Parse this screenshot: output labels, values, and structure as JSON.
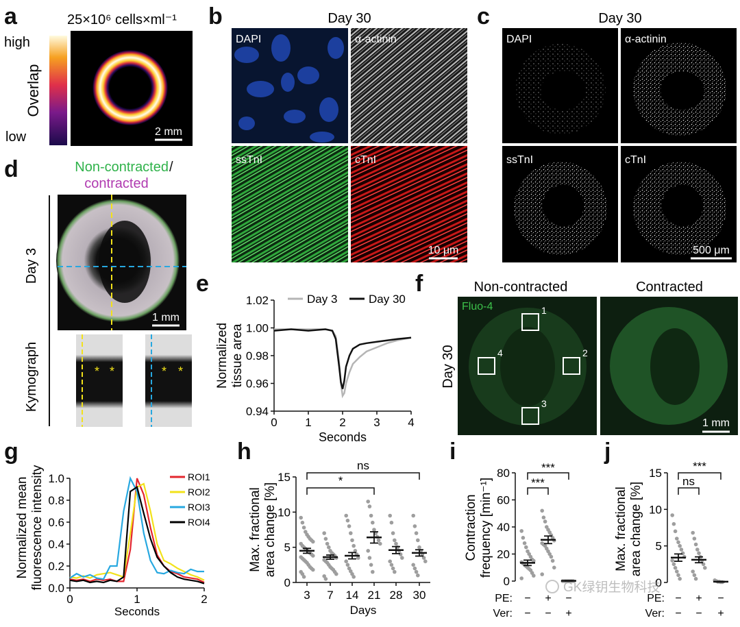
{
  "panel_letters": [
    "a",
    "b",
    "c",
    "d",
    "e",
    "f",
    "g",
    "h",
    "i",
    "j"
  ],
  "a": {
    "title": "25×10⁶ cells×ml⁻¹",
    "overlap_label": "Overlap",
    "high": "high",
    "low": "low",
    "scalebar": "2 mm"
  },
  "b": {
    "title": "Day 30",
    "labels": [
      "DAPI",
      "α-actinin",
      "ssTnI",
      "cTnI"
    ],
    "scalebar": "10 μm",
    "colors": [
      "#1c3f9e",
      "#bdbdbd",
      "#2fa83c",
      "#d81f1f"
    ]
  },
  "c": {
    "title": "Day 30",
    "labels": [
      "DAPI",
      "α-actinin",
      "ssTnI",
      "cTnI"
    ],
    "scalebar": "500 μm"
  },
  "d": {
    "title_green": "Non-contracted",
    "slash": "/",
    "title_magenta": "contracted",
    "side_label": "Day 3",
    "scalebar": "1 mm",
    "kymograph_label": "Kymograph",
    "marker": "*"
  },
  "f": {
    "title_left": "Non-contracted",
    "title_right": "Contracted",
    "fluo_label": "Fluo-4",
    "side_label": "Day 30",
    "roi_labels": [
      "1",
      "2",
      "3",
      "4"
    ],
    "scalebar": "1 mm"
  },
  "watermark": "GK绿钥生物科技",
  "chart_data": [
    {
      "panel": "e",
      "type": "line",
      "xlabel": "Seconds",
      "ylabel": "Normalized tissue area",
      "xlim": [
        0,
        4
      ],
      "ylim": [
        0.94,
        1.02
      ],
      "xticks": [
        "0",
        "1",
        "2",
        "3",
        "4"
      ],
      "yticks": [
        "0.94",
        "0.96",
        "0.98",
        "1.00",
        "1.02"
      ],
      "legend_position": "top",
      "series": [
        {
          "name": "Day 3",
          "color": "#b5b5b5",
          "x": [
            0,
            0.5,
            1.0,
            1.5,
            1.7,
            1.8,
            1.9,
            1.95,
            2.0,
            2.05,
            2.1,
            2.2,
            2.3,
            2.5,
            2.7,
            3.0,
            3.3,
            3.6,
            4.0
          ],
          "y": [
            0.999,
            0.999,
            0.999,
            0.999,
            0.998,
            0.994,
            0.975,
            0.96,
            0.951,
            0.953,
            0.96,
            0.968,
            0.974,
            0.979,
            0.983,
            0.986,
            0.989,
            0.991,
            0.993
          ]
        },
        {
          "name": "Day 30",
          "color": "#111111",
          "x": [
            0,
            0.5,
            1.0,
            1.5,
            1.7,
            1.8,
            1.9,
            1.95,
            2.0,
            2.05,
            2.1,
            2.2,
            2.3,
            2.5,
            2.7,
            3.0,
            3.3,
            3.6,
            4.0
          ],
          "y": [
            0.998,
            0.999,
            0.998,
            0.999,
            0.998,
            0.992,
            0.972,
            0.961,
            0.956,
            0.962,
            0.972,
            0.98,
            0.985,
            0.988,
            0.989,
            0.99,
            0.991,
            0.992,
            0.993
          ]
        }
      ]
    },
    {
      "panel": "g",
      "type": "line",
      "xlabel": "Seconds",
      "ylabel": "Normalized mean fluorescence intensity",
      "xlim": [
        0,
        2
      ],
      "ylim": [
        0,
        1.0
      ],
      "xticks": [
        "0",
        "1",
        "2"
      ],
      "yticks": [
        "0.0",
        "0.2",
        "0.4",
        "0.6",
        "0.8",
        "1.0"
      ],
      "legend_position": "top-right",
      "x": [
        0,
        0.1,
        0.2,
        0.3,
        0.4,
        0.5,
        0.6,
        0.7,
        0.8,
        0.9,
        1.0,
        1.1,
        1.2,
        1.3,
        1.4,
        1.5,
        1.6,
        1.7,
        1.8,
        1.9,
        2.0
      ],
      "series": [
        {
          "name": "ROI1",
          "color": "#e3262e",
          "values": [
            0.08,
            0.07,
            0.08,
            0.06,
            0.08,
            0.07,
            0.08,
            0.06,
            0.06,
            0.35,
            1.0,
            0.85,
            0.55,
            0.3,
            0.2,
            0.15,
            0.13,
            0.1,
            0.09,
            0.08,
            0.05
          ]
        },
        {
          "name": "ROI2",
          "color": "#f2e21a",
          "values": [
            0.1,
            0.09,
            0.11,
            0.09,
            0.12,
            0.13,
            0.14,
            0.12,
            0.1,
            0.5,
            0.92,
            0.95,
            0.7,
            0.4,
            0.25,
            0.22,
            0.18,
            0.15,
            0.12,
            0.1,
            0.07
          ]
        },
        {
          "name": "ROI3",
          "color": "#27a8e0",
          "values": [
            0.09,
            0.13,
            0.1,
            0.12,
            0.09,
            0.08,
            0.2,
            0.2,
            0.7,
            1.0,
            0.88,
            0.5,
            0.25,
            0.14,
            0.13,
            0.16,
            0.14,
            0.13,
            0.17,
            0.15,
            0.15
          ]
        },
        {
          "name": "ROI4",
          "color": "#000000",
          "values": [
            0.07,
            0.06,
            0.07,
            0.05,
            0.06,
            0.05,
            0.07,
            0.06,
            0.1,
            0.88,
            0.92,
            0.68,
            0.45,
            0.28,
            0.2,
            0.14,
            0.1,
            0.08,
            0.07,
            0.06,
            0.04
          ]
        }
      ]
    },
    {
      "panel": "h",
      "type": "scatter",
      "xlabel": "Days",
      "ylabel": "Max. fractional area change [%]",
      "categories": [
        "3",
        "7",
        "14",
        "21",
        "28",
        "30"
      ],
      "ylim": [
        0,
        15
      ],
      "yticks": [
        "0",
        "5",
        "10",
        "15"
      ],
      "means": [
        4.5,
        3.6,
        3.8,
        6.4,
        4.6,
        4.2
      ],
      "sems": [
        0.35,
        0.3,
        0.45,
        0.8,
        0.5,
        0.45
      ],
      "points": [
        [
          9.2,
          8.5,
          7.8,
          7.2,
          6.8,
          6.5,
          6.2,
          6.0,
          5.8,
          5.5,
          5.2,
          5.0,
          4.8,
          4.6,
          4.4,
          4.2,
          4.0,
          3.8,
          3.6,
          3.4,
          3.2,
          3.0,
          2.8,
          2.5,
          2.2,
          2.0,
          1.8,
          1.5,
          1.2,
          0.8
        ],
        [
          7.0,
          6.2,
          5.5,
          5.0,
          4.5,
          4.2,
          4.0,
          3.8,
          3.5,
          3.2,
          3.0,
          2.8,
          2.5,
          2.2,
          2.0,
          1.8,
          1.5,
          1.2,
          0.9,
          0.5
        ],
        [
          9.5,
          8.8,
          8.0,
          7.0,
          6.0,
          5.2,
          4.5,
          4.0,
          3.5,
          3.0,
          2.5,
          2.0,
          1.6,
          1.2,
          0.8
        ],
        [
          11.5,
          10.8,
          9.5,
          8.5,
          7.5,
          7.0,
          6.5,
          6.0,
          5.5,
          4.5,
          3.5,
          2.5,
          1.5
        ],
        [
          9.5,
          8.5,
          7.0,
          6.0,
          5.5,
          5.0,
          4.5,
          4.0,
          3.5,
          3.0,
          2.5,
          2.0,
          1.5
        ],
        [
          9.5,
          8.0,
          7.0,
          6.0,
          5.0,
          4.5,
          4.0,
          3.5,
          3.0,
          2.5,
          2.0,
          1.5,
          1.0
        ]
      ],
      "annotations": [
        {
          "text": "*",
          "from": "3",
          "to": "21"
        },
        {
          "text": "ns",
          "from": "3",
          "to": "30"
        }
      ]
    },
    {
      "panel": "i",
      "type": "scatter",
      "ylabel": "Contraction frequency [min⁻¹]",
      "ylim": [
        0,
        80
      ],
      "yticks": [
        "0",
        "20",
        "40",
        "60",
        "80"
      ],
      "row_labels": [
        "PE:",
        "Ver:"
      ],
      "conditions": [
        [
          "−",
          "−"
        ],
        [
          "+",
          "−"
        ],
        [
          "−",
          "+"
        ]
      ],
      "means": [
        13.5,
        30.5,
        0.2
      ],
      "sems": [
        2.0,
        2.8,
        0.2
      ],
      "points": [
        [
          37,
          32,
          28,
          25,
          22,
          20,
          18,
          16,
          15,
          14,
          13,
          12,
          11,
          10,
          9,
          8,
          6,
          4,
          2
        ],
        [
          52,
          47,
          44,
          40,
          38,
          36,
          34,
          32,
          30,
          28,
          27,
          26,
          24,
          22,
          20,
          18,
          15,
          10,
          5
        ],
        [
          0,
          0,
          0,
          0,
          0,
          0,
          0,
          0
        ]
      ],
      "annotations": [
        {
          "text": "***",
          "from": 0,
          "to": 1
        },
        {
          "text": "***",
          "from": 0,
          "to": 2
        }
      ]
    },
    {
      "panel": "j",
      "type": "scatter",
      "ylabel": "Max. fractional area change [%]",
      "ylim": [
        0,
        15
      ],
      "yticks": [
        "0",
        "5",
        "10",
        "15"
      ],
      "row_labels": [
        "PE:",
        "Ver:"
      ],
      "conditions": [
        [
          "−",
          "−"
        ],
        [
          "+",
          "−"
        ],
        [
          "−",
          "+"
        ]
      ],
      "means": [
        3.4,
        3.1,
        0.1
      ],
      "sems": [
        0.5,
        0.4,
        0.05
      ],
      "points": [
        [
          9.2,
          8.0,
          7.0,
          6.0,
          5.5,
          5.0,
          4.5,
          4.0,
          3.5,
          3.0,
          2.5,
          2.0,
          1.5,
          1.0,
          0.5
        ],
        [
          6.8,
          6.0,
          5.2,
          4.5,
          4.0,
          3.5,
          3.0,
          2.5,
          2.0,
          1.5,
          1.0,
          0.5
        ],
        [
          0.3,
          0.2,
          0.1,
          0.1,
          0.05,
          0.05
        ]
      ],
      "annotations": [
        {
          "text": "ns",
          "from": 0,
          "to": 1
        },
        {
          "text": "***",
          "from": 0,
          "to": 2
        }
      ]
    }
  ]
}
